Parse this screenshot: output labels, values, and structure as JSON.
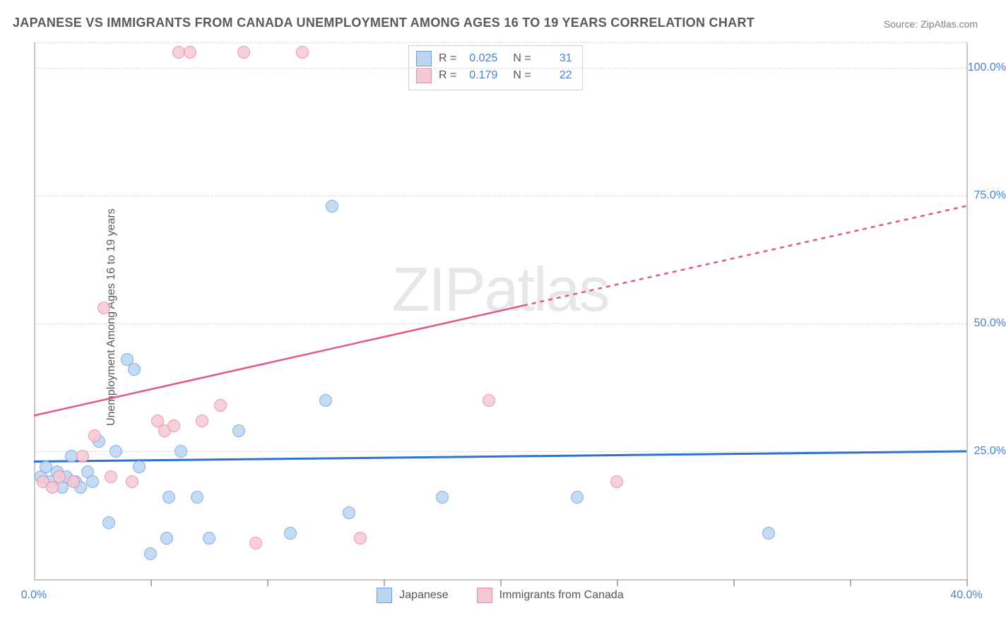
{
  "title": "JAPANESE VS IMMIGRANTS FROM CANADA UNEMPLOYMENT AMONG AGES 16 TO 19 YEARS CORRELATION CHART",
  "source": "Source: ZipAtlas.com",
  "watermark": "ZIPatlas",
  "y_axis": {
    "label": "Unemployment Among Ages 16 to 19 years",
    "min": 0,
    "max": 105,
    "ticks": [
      25,
      50,
      75,
      100
    ],
    "tick_labels": [
      "25.0%",
      "50.0%",
      "75.0%",
      "100.0%"
    ]
  },
  "x_axis": {
    "min": 0,
    "max": 40,
    "ticks_major": [
      5,
      10,
      15,
      20,
      25,
      30,
      35,
      40
    ],
    "labels": [
      {
        "x": 0,
        "text": "0.0%"
      },
      {
        "x": 40,
        "text": "40.0%"
      }
    ]
  },
  "series": [
    {
      "name": "Japanese",
      "color_fill": "#bcd5f2",
      "color_stroke": "#6ea3e0",
      "r_label": "R =",
      "r_value": "0.025",
      "n_label": "N =",
      "n_value": "31",
      "trend": {
        "y_at_x0": 23,
        "y_at_xmax": 25,
        "stroke": "#2e72d2",
        "width": 3
      },
      "points": [
        {
          "x": 0.3,
          "y": 20
        },
        {
          "x": 0.5,
          "y": 22
        },
        {
          "x": 0.7,
          "y": 19
        },
        {
          "x": 1.0,
          "y": 21
        },
        {
          "x": 1.2,
          "y": 18
        },
        {
          "x": 1.4,
          "y": 20
        },
        {
          "x": 1.6,
          "y": 24
        },
        {
          "x": 1.8,
          "y": 19
        },
        {
          "x": 2.0,
          "y": 18
        },
        {
          "x": 2.3,
          "y": 21
        },
        {
          "x": 2.5,
          "y": 19
        },
        {
          "x": 2.8,
          "y": 27
        },
        {
          "x": 3.2,
          "y": 11
        },
        {
          "x": 3.5,
          "y": 25
        },
        {
          "x": 4.0,
          "y": 43
        },
        {
          "x": 4.3,
          "y": 41
        },
        {
          "x": 4.5,
          "y": 22
        },
        {
          "x": 5.0,
          "y": 5
        },
        {
          "x": 5.7,
          "y": 8
        },
        {
          "x": 5.8,
          "y": 16
        },
        {
          "x": 6.3,
          "y": 25
        },
        {
          "x": 7.0,
          "y": 16
        },
        {
          "x": 7.5,
          "y": 8
        },
        {
          "x": 8.8,
          "y": 29
        },
        {
          "x": 11.0,
          "y": 9
        },
        {
          "x": 12.5,
          "y": 35
        },
        {
          "x": 12.8,
          "y": 73
        },
        {
          "x": 13.5,
          "y": 13
        },
        {
          "x": 17.5,
          "y": 16
        },
        {
          "x": 23.3,
          "y": 16
        },
        {
          "x": 31.5,
          "y": 9
        }
      ]
    },
    {
      "name": "Immigrants from Canada",
      "color_fill": "#f5c9d4",
      "color_stroke": "#e889a6",
      "r_label": "R =",
      "r_value": "0.179",
      "n_label": "N =",
      "n_value": "22",
      "trend": {
        "y_at_x0": 32,
        "y_at_xmax": 73,
        "stroke": "#e05a85",
        "width": 2.5,
        "dash_after_x": 21
      },
      "points": [
        {
          "x": 0.4,
          "y": 19
        },
        {
          "x": 0.8,
          "y": 18
        },
        {
          "x": 1.1,
          "y": 20
        },
        {
          "x": 1.7,
          "y": 19
        },
        {
          "x": 2.1,
          "y": 24
        },
        {
          "x": 2.6,
          "y": 28
        },
        {
          "x": 3.0,
          "y": 53
        },
        {
          "x": 3.3,
          "y": 20
        },
        {
          "x": 4.2,
          "y": 19
        },
        {
          "x": 5.3,
          "y": 31
        },
        {
          "x": 5.6,
          "y": 29
        },
        {
          "x": 6.0,
          "y": 30
        },
        {
          "x": 6.2,
          "y": 103
        },
        {
          "x": 6.7,
          "y": 103
        },
        {
          "x": 8.0,
          "y": 34
        },
        {
          "x": 9.0,
          "y": 103
        },
        {
          "x": 9.5,
          "y": 7
        },
        {
          "x": 11.5,
          "y": 103
        },
        {
          "x": 14.0,
          "y": 8
        },
        {
          "x": 19.5,
          "y": 35
        },
        {
          "x": 25.0,
          "y": 19
        },
        {
          "x": 7.2,
          "y": 31
        }
      ]
    }
  ],
  "colors": {
    "title": "#5a5a5a",
    "tick_value": "#4a7fd6",
    "grid": "#d8d8d8"
  },
  "marker_radius": 9
}
